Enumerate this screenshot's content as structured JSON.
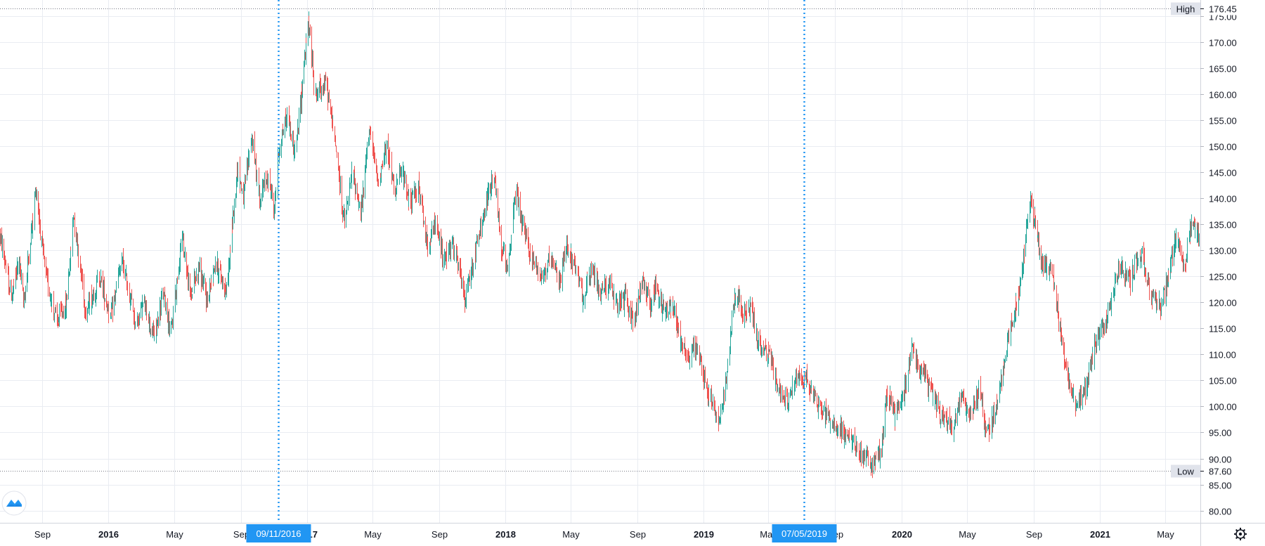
{
  "colors": {
    "up": "#26a69a",
    "down": "#ef5350",
    "grid": "#e9ecf2",
    "marker": "#2196f3",
    "axis_text": "#131722",
    "badge_bg": "#e0e3eb"
  },
  "icons": {
    "logo": "tradingview-logo-icon",
    "settings": "gear-icon"
  },
  "chart_data": {
    "type": "candlestick",
    "title": "",
    "ylim": [
      79,
      176.45
    ],
    "xrange": [
      "2015-06-15",
      "2021-07-05"
    ],
    "y_ticks": [
      "80.00",
      "85.00",
      "90.00",
      "95.00",
      "100.00",
      "105.00",
      "110.00",
      "115.00",
      "120.00",
      "125.00",
      "130.00",
      "135.00",
      "140.00",
      "145.00",
      "150.00",
      "155.00",
      "160.00",
      "165.00",
      "170.00",
      "175.00"
    ],
    "x_ticks": [
      {
        "label": "Sep",
        "date": "2015-09-01"
      },
      {
        "label": "2016",
        "date": "2016-01-01",
        "major": true
      },
      {
        "label": "May",
        "date": "2016-05-01"
      },
      {
        "label": "Sep",
        "date": "2016-09-01"
      },
      {
        "label": "2017",
        "date": "2017-01-01",
        "major": true
      },
      {
        "label": "May",
        "date": "2017-05-01"
      },
      {
        "label": "Sep",
        "date": "2017-09-01"
      },
      {
        "label": "2018",
        "date": "2018-01-01",
        "major": true
      },
      {
        "label": "May",
        "date": "2018-05-01"
      },
      {
        "label": "Sep",
        "date": "2018-09-01"
      },
      {
        "label": "2019",
        "date": "2019-01-01",
        "major": true
      },
      {
        "label": "May",
        "date": "2019-05-01"
      },
      {
        "label": "Sep",
        "date": "2019-09-01"
      },
      {
        "label": "2020",
        "date": "2020-01-01",
        "major": true
      },
      {
        "label": "May",
        "date": "2020-05-01"
      },
      {
        "label": "Sep",
        "date": "2020-09-01"
      },
      {
        "label": "2021",
        "date": "2021-01-01",
        "major": true
      },
      {
        "label": "May",
        "date": "2021-05-01"
      }
    ],
    "high": {
      "name": "High",
      "label": "176.45",
      "value": 176.45
    },
    "low": {
      "name": "Low",
      "label": "87.60",
      "value": 87.6
    },
    "markers": [
      {
        "label": "09/11/2016",
        "date": "2016-11-09"
      },
      {
        "label": "07/05/2019",
        "date": "2019-07-05"
      }
    ],
    "price_path": [
      [
        "2015-06-15",
        133
      ],
      [
        "2015-07-05",
        121
      ],
      [
        "2015-07-20",
        128
      ],
      [
        "2015-07-28",
        120
      ],
      [
        "2015-08-20",
        142
      ],
      [
        "2015-09-05",
        126
      ],
      [
        "2015-09-28",
        116
      ],
      [
        "2015-10-15",
        120
      ],
      [
        "2015-10-28",
        137
      ],
      [
        "2015-11-20",
        118
      ],
      [
        "2015-12-15",
        125
      ],
      [
        "2016-01-05",
        117
      ],
      [
        "2016-01-25",
        128
      ],
      [
        "2016-02-20",
        116
      ],
      [
        "2016-03-05",
        120
      ],
      [
        "2016-03-25",
        113
      ],
      [
        "2016-04-10",
        122
      ],
      [
        "2016-04-25",
        114
      ],
      [
        "2016-05-15",
        133
      ],
      [
        "2016-05-30",
        121
      ],
      [
        "2016-06-15",
        127
      ],
      [
        "2016-06-30",
        120
      ],
      [
        "2016-07-15",
        128
      ],
      [
        "2016-08-05",
        122
      ],
      [
        "2016-08-25",
        146
      ],
      [
        "2016-09-05",
        140
      ],
      [
        "2016-09-20",
        152
      ],
      [
        "2016-10-05",
        140
      ],
      [
        "2016-10-20",
        144
      ],
      [
        "2016-11-01",
        138
      ],
      [
        "2016-11-10",
        150
      ],
      [
        "2016-11-25",
        156
      ],
      [
        "2016-12-10",
        148
      ],
      [
        "2016-12-25",
        165
      ],
      [
        "2017-01-03",
        174
      ],
      [
        "2017-01-15",
        160
      ],
      [
        "2017-02-05",
        162
      ],
      [
        "2017-02-25",
        148
      ],
      [
        "2017-03-10",
        135
      ],
      [
        "2017-03-25",
        145
      ],
      [
        "2017-04-10",
        137
      ],
      [
        "2017-04-25",
        154
      ],
      [
        "2017-05-10",
        143
      ],
      [
        "2017-05-28",
        150
      ],
      [
        "2017-06-10",
        142
      ],
      [
        "2017-06-25",
        145
      ],
      [
        "2017-07-10",
        139
      ],
      [
        "2017-07-25",
        142
      ],
      [
        "2017-08-10",
        131
      ],
      [
        "2017-08-25",
        135
      ],
      [
        "2017-09-10",
        128
      ],
      [
        "2017-09-25",
        131
      ],
      [
        "2017-10-10",
        125
      ],
      [
        "2017-10-18",
        120
      ],
      [
        "2017-11-05",
        129
      ],
      [
        "2017-11-25",
        138
      ],
      [
        "2017-12-10",
        145
      ],
      [
        "2017-12-25",
        130
      ],
      [
        "2018-01-05",
        127
      ],
      [
        "2018-01-20",
        141
      ],
      [
        "2018-02-05",
        133
      ],
      [
        "2018-02-20",
        128
      ],
      [
        "2018-03-10",
        125
      ],
      [
        "2018-03-25",
        128
      ],
      [
        "2018-04-10",
        124
      ],
      [
        "2018-04-25",
        131
      ],
      [
        "2018-05-10",
        126
      ],
      [
        "2018-05-25",
        121
      ],
      [
        "2018-06-10",
        126
      ],
      [
        "2018-06-25",
        122
      ],
      [
        "2018-07-10",
        124
      ],
      [
        "2018-07-25",
        119
      ],
      [
        "2018-08-10",
        121
      ],
      [
        "2018-08-25",
        116
      ],
      [
        "2018-09-10",
        124
      ],
      [
        "2018-09-25",
        120
      ],
      [
        "2018-10-05",
        123
      ],
      [
        "2018-10-20",
        118
      ],
      [
        "2018-11-05",
        120
      ],
      [
        "2018-11-20",
        113
      ],
      [
        "2018-12-05",
        109
      ],
      [
        "2018-12-20",
        112
      ],
      [
        "2019-01-05",
        104
      ],
      [
        "2019-01-20",
        100
      ],
      [
        "2019-01-30",
        97
      ],
      [
        "2019-02-10",
        104
      ],
      [
        "2019-03-01",
        123
      ],
      [
        "2019-03-15",
        117
      ],
      [
        "2019-03-30",
        119
      ],
      [
        "2019-04-15",
        111
      ],
      [
        "2019-05-01",
        110
      ],
      [
        "2019-05-20",
        103
      ],
      [
        "2019-06-05",
        101
      ],
      [
        "2019-06-25",
        106
      ],
      [
        "2019-07-10",
        105
      ],
      [
        "2019-07-30",
        101
      ],
      [
        "2019-08-15",
        98
      ],
      [
        "2019-09-05",
        96
      ],
      [
        "2019-09-25",
        94
      ],
      [
        "2019-10-10",
        92
      ],
      [
        "2019-10-25",
        90
      ],
      [
        "2019-11-10",
        88.5
      ],
      [
        "2019-11-25",
        92
      ],
      [
        "2019-12-05",
        103
      ],
      [
        "2019-12-20",
        98
      ],
      [
        "2020-01-05",
        102
      ],
      [
        "2020-01-20",
        112
      ],
      [
        "2020-02-05",
        107
      ],
      [
        "2020-02-25",
        103
      ],
      [
        "2020-03-15",
        98
      ],
      [
        "2020-04-05",
        96
      ],
      [
        "2020-04-20",
        102
      ],
      [
        "2020-05-05",
        98
      ],
      [
        "2020-05-25",
        104
      ],
      [
        "2020-06-05",
        94
      ],
      [
        "2020-06-25",
        100
      ],
      [
        "2020-07-15",
        113
      ],
      [
        "2020-08-05",
        122
      ],
      [
        "2020-08-25",
        140
      ],
      [
        "2020-09-15",
        128
      ],
      [
        "2020-10-05",
        126
      ],
      [
        "2020-10-25",
        110
      ],
      [
        "2020-11-15",
        100
      ],
      [
        "2020-12-05",
        103
      ],
      [
        "2020-12-25",
        113
      ],
      [
        "2021-01-15",
        117
      ],
      [
        "2021-02-05",
        127
      ],
      [
        "2021-02-25",
        124
      ],
      [
        "2021-03-15",
        130
      ],
      [
        "2021-04-05",
        121
      ],
      [
        "2021-04-25",
        119
      ],
      [
        "2021-05-05",
        124
      ],
      [
        "2021-05-20",
        132
      ],
      [
        "2021-06-05",
        127
      ],
      [
        "2021-06-20",
        136
      ],
      [
        "2021-07-05",
        132
      ]
    ]
  }
}
